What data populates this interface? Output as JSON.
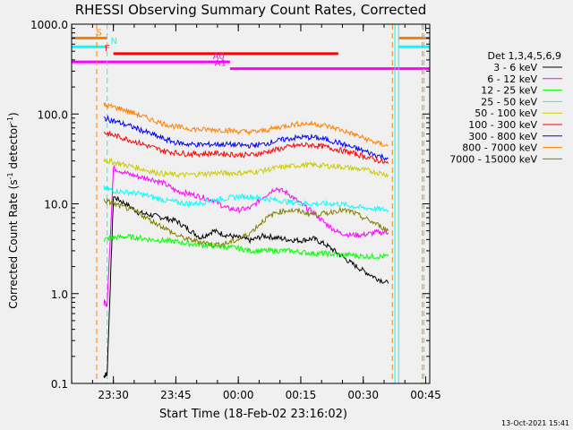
{
  "chart_data": {
    "type": "line",
    "title": "RHESSI Observing Summary Count Rates, Corrected",
    "xlabel": "Start Time (18-Feb-02 23:16:02)",
    "ylabel_main": "Corrected Count Rate (s",
    "ylabel_sup": "-1",
    "ylabel_mid": " detector",
    "ylabel_sup2": "-1",
    "ylabel_end": ")",
    "footer": "13-Oct-2021 15:41",
    "y_scale": "log",
    "ylim": [
      0.1,
      1000
    ],
    "xlim_minutes": [
      -10.03,
      75.97
    ],
    "x_tick_labels": [
      "23:30",
      "23:45",
      "00:00",
      "00:15",
      "00:30",
      "00:45"
    ],
    "x_tick_minutes": [
      0,
      15,
      30,
      45,
      60,
      75
    ],
    "y_tick_labels": [
      "0.1",
      "1.0",
      "10.0",
      "100.0",
      "1000.0"
    ],
    "y_tick_values": [
      0.1,
      1,
      10,
      100,
      1000
    ],
    "legend_title": "Det 1,3,4,5,6,9",
    "legend_position": "right",
    "series": [
      {
        "name": "3 - 6 keV",
        "color": "#000000",
        "points": [
          [
            -2.3,
            0.12
          ],
          [
            -1.5,
            0.13
          ],
          [
            0.0,
            12
          ],
          [
            3,
            10
          ],
          [
            6,
            8
          ],
          [
            9,
            7.5
          ],
          [
            12,
            7
          ],
          [
            15,
            6.5
          ],
          [
            18,
            5.2
          ],
          [
            21,
            4.2
          ],
          [
            24,
            5
          ],
          [
            27,
            4.5
          ],
          [
            30,
            4.2
          ],
          [
            33,
            3.9
          ],
          [
            36,
            4.4
          ],
          [
            39,
            4.2
          ],
          [
            42,
            4
          ],
          [
            45,
            3.9
          ],
          [
            48,
            4.1
          ],
          [
            51,
            3.5
          ],
          [
            54,
            2.8
          ],
          [
            57,
            2.2
          ],
          [
            60,
            1.8
          ],
          [
            63,
            1.5
          ],
          [
            66,
            1.3
          ]
        ]
      },
      {
        "name": "6 - 12 keV",
        "color": "#ff00ff",
        "points": [
          [
            -2.3,
            0.8
          ],
          [
            -1.5,
            0.75
          ],
          [
            0.0,
            25
          ],
          [
            3,
            22
          ],
          [
            6,
            20
          ],
          [
            9,
            19
          ],
          [
            12,
            17
          ],
          [
            15,
            14
          ],
          [
            18,
            13
          ],
          [
            21,
            12
          ],
          [
            24,
            11
          ],
          [
            27,
            9
          ],
          [
            30,
            8.5
          ],
          [
            33,
            9
          ],
          [
            36,
            12
          ],
          [
            39,
            15
          ],
          [
            42,
            13
          ],
          [
            45,
            10
          ],
          [
            48,
            8
          ],
          [
            51,
            6
          ],
          [
            54,
            4.8
          ],
          [
            57,
            4.5
          ],
          [
            60,
            4.5
          ],
          [
            63,
            4.8
          ],
          [
            66,
            4.8
          ]
        ]
      },
      {
        "name": "12 - 25 keV",
        "color": "#00ff00",
        "points": [
          [
            -2.3,
            4.0
          ],
          [
            0,
            4.2
          ],
          [
            3,
            4.3
          ],
          [
            6,
            4.2
          ],
          [
            9,
            4.0
          ],
          [
            12,
            3.9
          ],
          [
            15,
            3.8
          ],
          [
            18,
            3.6
          ],
          [
            21,
            3.5
          ],
          [
            24,
            3.4
          ],
          [
            27,
            3.3
          ],
          [
            30,
            3.2
          ],
          [
            33,
            3.0
          ],
          [
            36,
            3.0
          ],
          [
            39,
            3.0
          ],
          [
            42,
            3.0
          ],
          [
            45,
            2.9
          ],
          [
            48,
            2.8
          ],
          [
            51,
            2.8
          ],
          [
            54,
            2.7
          ],
          [
            57,
            2.7
          ],
          [
            60,
            2.6
          ],
          [
            63,
            2.6
          ],
          [
            66,
            2.6
          ]
        ]
      },
      {
        "name": "25 - 50 keV",
        "color": "#00ffff",
        "points": [
          [
            -2.3,
            15
          ],
          [
            0,
            14
          ],
          [
            3,
            13.5
          ],
          [
            6,
            13
          ],
          [
            9,
            12
          ],
          [
            12,
            11
          ],
          [
            15,
            10.5
          ],
          [
            18,
            10
          ],
          [
            21,
            10.3
          ],
          [
            24,
            11
          ],
          [
            27,
            11.5
          ],
          [
            30,
            12
          ],
          [
            33,
            12
          ],
          [
            36,
            11.5
          ],
          [
            39,
            11
          ],
          [
            42,
            10.5
          ],
          [
            45,
            10.2
          ],
          [
            48,
            10
          ],
          [
            51,
            10
          ],
          [
            54,
            10
          ],
          [
            57,
            9.5
          ],
          [
            60,
            9
          ],
          [
            63,
            8.8
          ],
          [
            66,
            8.5
          ]
        ]
      },
      {
        "name": "50 - 100 keV",
        "color": "#cccc00",
        "points": [
          [
            -2.3,
            31
          ],
          [
            0,
            29
          ],
          [
            3,
            27
          ],
          [
            6,
            25
          ],
          [
            9,
            23
          ],
          [
            12,
            21.5
          ],
          [
            15,
            21
          ],
          [
            18,
            21
          ],
          [
            21,
            21.5
          ],
          [
            24,
            22
          ],
          [
            27,
            22
          ],
          [
            30,
            22
          ],
          [
            33,
            22.5
          ],
          [
            36,
            23.5
          ],
          [
            39,
            25
          ],
          [
            42,
            26
          ],
          [
            45,
            27
          ],
          [
            48,
            27
          ],
          [
            51,
            26.5
          ],
          [
            54,
            26
          ],
          [
            57,
            25
          ],
          [
            60,
            24
          ],
          [
            63,
            22.5
          ],
          [
            66,
            21
          ]
        ]
      },
      {
        "name": "100 - 300 keV",
        "color": "#ff0000",
        "points": [
          [
            -2.3,
            62
          ],
          [
            0,
            58
          ],
          [
            3,
            53
          ],
          [
            6,
            48
          ],
          [
            9,
            43
          ],
          [
            12,
            39
          ],
          [
            15,
            37
          ],
          [
            18,
            36
          ],
          [
            21,
            36
          ],
          [
            24,
            36.5
          ],
          [
            27,
            36
          ],
          [
            30,
            35
          ],
          [
            33,
            35
          ],
          [
            36,
            37
          ],
          [
            39,
            40
          ],
          [
            42,
            43
          ],
          [
            45,
            45
          ],
          [
            48,
            45
          ],
          [
            51,
            43
          ],
          [
            54,
            40
          ],
          [
            57,
            37
          ],
          [
            60,
            34
          ],
          [
            63,
            31
          ],
          [
            66,
            28
          ]
        ]
      },
      {
        "name": "300 - 800 keV",
        "color": "#0000ff",
        "points": [
          [
            -2.3,
            90
          ],
          [
            0,
            84
          ],
          [
            3,
            76
          ],
          [
            6,
            68
          ],
          [
            9,
            60
          ],
          [
            12,
            53
          ],
          [
            15,
            48
          ],
          [
            18,
            46
          ],
          [
            21,
            45.5
          ],
          [
            24,
            46
          ],
          [
            27,
            46
          ],
          [
            30,
            45
          ],
          [
            33,
            44.5
          ],
          [
            36,
            46
          ],
          [
            39,
            50
          ],
          [
            42,
            53
          ],
          [
            45,
            55
          ],
          [
            48,
            55
          ],
          [
            51,
            52
          ],
          [
            54,
            48
          ],
          [
            57,
            43
          ],
          [
            60,
            39
          ],
          [
            63,
            35
          ],
          [
            66,
            32
          ]
        ]
      },
      {
        "name": "800 - 7000 keV",
        "color": "#ff8000",
        "points": [
          [
            -2.3,
            125
          ],
          [
            0,
            120
          ],
          [
            3,
            110
          ],
          [
            6,
            98
          ],
          [
            9,
            87
          ],
          [
            12,
            78
          ],
          [
            15,
            72
          ],
          [
            18,
            69
          ],
          [
            21,
            67
          ],
          [
            24,
            67
          ],
          [
            27,
            66
          ],
          [
            30,
            64
          ],
          [
            33,
            63
          ],
          [
            36,
            65
          ],
          [
            39,
            70
          ],
          [
            42,
            75
          ],
          [
            45,
            78
          ],
          [
            48,
            78
          ],
          [
            51,
            74
          ],
          [
            54,
            68
          ],
          [
            57,
            61
          ],
          [
            60,
            54
          ],
          [
            63,
            48
          ],
          [
            66,
            44
          ]
        ]
      },
      {
        "name": "7000 - 15000 keV",
        "color": "#808000",
        "points": [
          [
            -2.3,
            11
          ],
          [
            0,
            10
          ],
          [
            3,
            9
          ],
          [
            6,
            8
          ],
          [
            9,
            6.5
          ],
          [
            12,
            5.5
          ],
          [
            15,
            4.5
          ],
          [
            18,
            4
          ],
          [
            21,
            3.8
          ],
          [
            24,
            3.5
          ],
          [
            27,
            3.6
          ],
          [
            30,
            4
          ],
          [
            33,
            4.8
          ],
          [
            36,
            6.5
          ],
          [
            39,
            8
          ],
          [
            42,
            8.5
          ],
          [
            45,
            8.2
          ],
          [
            48,
            7.6
          ],
          [
            51,
            7.8
          ],
          [
            54,
            8.5
          ],
          [
            57,
            8.2
          ],
          [
            60,
            7
          ],
          [
            63,
            6
          ],
          [
            66,
            5
          ]
        ]
      }
    ],
    "flags": [
      {
        "label": "S",
        "color": "#ff8000",
        "level": 700,
        "ranges": [
          [
            -10.03,
            -1.5
          ],
          [
            68.5,
            75.97
          ]
        ]
      },
      {
        "label": "N",
        "color": "#00ffff",
        "level": 560,
        "ranges": [
          [
            -10.03,
            -1.5
          ],
          [
            68.5,
            75.97
          ]
        ]
      },
      {
        "label": "F",
        "color": "#ff0000",
        "level": 470,
        "ranges": [
          [
            0.0,
            54.0
          ]
        ]
      },
      {
        "label": "A0",
        "color": "#ff00ff",
        "level": 380,
        "ranges": [
          [
            -10.03,
            28.0
          ]
        ]
      },
      {
        "label": "A1",
        "color": "#ff00ff",
        "level": 320,
        "ranges": [
          [
            28.0,
            75.97
          ]
        ]
      }
    ],
    "vlines": [
      {
        "x": -10.03,
        "color": "#00ffff",
        "style": "solid"
      },
      {
        "x": -4.0,
        "color": "#ff8000",
        "style": "dashed"
      },
      {
        "x": -1.5,
        "color": "#00ffff",
        "style": "dashed"
      },
      {
        "x": 67.0,
        "color": "#ff8000",
        "style": "dashed"
      },
      {
        "x": 67.6,
        "color": "#00ffff",
        "style": "solid"
      },
      {
        "x": 68.5,
        "color": "#00ffff",
        "style": "solid"
      },
      {
        "x": 74.2,
        "color": "#ff8000",
        "style": "dashed"
      },
      {
        "x": 74.6,
        "color": "#00ffff",
        "style": "dashed"
      }
    ]
  }
}
